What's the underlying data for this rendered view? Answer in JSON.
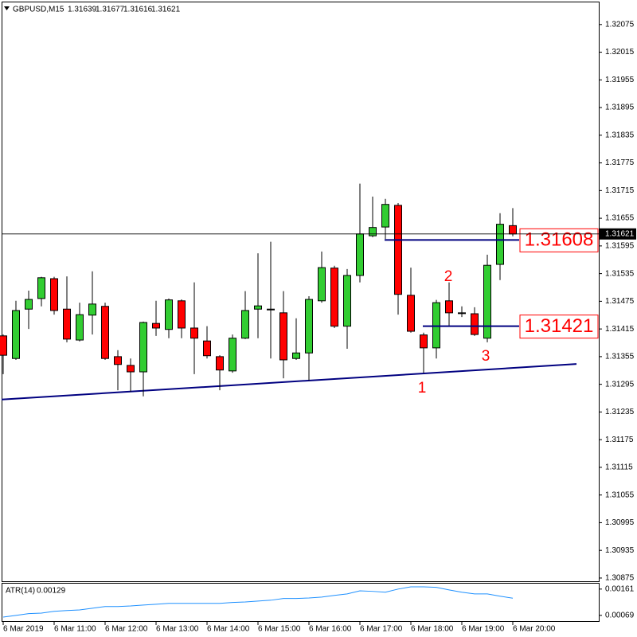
{
  "chart_data": [
    {
      "type": "candlestick",
      "title": "GBPUSD,M15",
      "categories": [
        "6 Mar 2019",
        null,
        null,
        null,
        "6 Mar 11:00",
        null,
        null,
        null,
        "6 Mar 12:00",
        null,
        null,
        null,
        "6 Mar 13:00",
        null,
        null,
        null,
        "6 Mar 14:00",
        null,
        null,
        null,
        "6 Mar 15:00",
        null,
        null,
        null,
        "6 Mar 16:00",
        null,
        null,
        null,
        "6 Mar 17:00",
        null,
        null,
        null,
        "6 Mar 18:00",
        null,
        null,
        null,
        "6 Mar 19:00",
        null,
        null,
        null,
        "6 Mar 20:00"
      ],
      "open": [
        1.314,
        1.31351,
        1.31458,
        1.31481,
        1.31524,
        1.31458,
        1.31391,
        1.31445,
        1.31464,
        1.31355,
        1.31336,
        1.31322,
        1.31427,
        1.31414,
        1.31476,
        1.31417,
        1.31389,
        1.31355,
        1.31324,
        1.31395,
        1.31458,
        1.31458,
        1.3145,
        1.31351,
        1.31363,
        1.31476,
        1.31547,
        1.31421,
        1.31531,
        1.31617,
        1.31636,
        1.31683,
        1.31488,
        1.31402,
        1.31374,
        1.31476,
        1.3145,
        1.31448,
        1.31395,
        1.31555,
        1.31639
      ],
      "high": [
        1.31403,
        1.31476,
        1.31498,
        1.31528,
        1.31528,
        1.31529,
        1.31472,
        1.3154,
        1.31472,
        1.31369,
        1.31351,
        1.31431,
        1.31476,
        1.31481,
        1.31479,
        1.31516,
        1.31421,
        1.31358,
        1.31403,
        1.31497,
        1.31579,
        1.31604,
        1.31497,
        1.31438,
        1.31486,
        1.31583,
        1.31552,
        1.31545,
        1.3173,
        1.31702,
        1.31697,
        1.31688,
        1.31548,
        1.31407,
        1.31478,
        1.31516,
        1.31464,
        1.31462,
        1.31576,
        1.31666,
        1.31677
      ],
      "low": [
        1.31317,
        1.31348,
        1.31415,
        1.31464,
        1.31446,
        1.31386,
        1.31388,
        1.31403,
        1.31348,
        1.31282,
        1.31279,
        1.31269,
        1.314,
        1.31395,
        1.31395,
        1.31317,
        1.31351,
        1.31282,
        1.3132,
        1.31393,
        1.31395,
        1.31351,
        1.31308,
        1.31348,
        1.31303,
        1.31472,
        1.31417,
        1.31372,
        1.31516,
        1.31614,
        1.3161,
        1.31446,
        1.31407,
        1.3132,
        1.31351,
        1.31421,
        1.31441,
        1.314,
        1.31386,
        1.31521,
        1.31616
      ],
      "close": [
        1.31358,
        1.31455,
        1.31479,
        1.31526,
        1.31455,
        1.31393,
        1.31446,
        1.31469,
        1.31351,
        1.31338,
        1.31322,
        1.31429,
        1.31417,
        1.31478,
        1.31417,
        1.31395,
        1.31357,
        1.31326,
        1.31395,
        1.31455,
        1.31465,
        1.31458,
        1.31348,
        1.31363,
        1.31479,
        1.31548,
        1.31421,
        1.31531,
        1.31621,
        1.31635,
        1.31685,
        1.3149,
        1.3141,
        1.31374,
        1.31472,
        1.3145,
        1.3145,
        1.31403,
        1.31553,
        1.31642,
        1.31621
      ],
      "up_color": "#32cd32",
      "down_color": "#ff0000",
      "ylim": [
        1.30868,
        1.32123
      ],
      "yticks": [
        1.32075,
        1.32015,
        1.31955,
        1.31895,
        1.31835,
        1.31775,
        1.31715,
        1.31655,
        1.31595,
        1.31535,
        1.31475,
        1.31415,
        1.31355,
        1.31295,
        1.31235,
        1.31175,
        1.31115,
        1.31055,
        1.30995,
        1.30935,
        1.30875
      ],
      "levels": [
        1.31608,
        1.31421
      ],
      "level_color": "#000080",
      "trendline": [
        1.31262,
        1.31339
      ],
      "trendline_color": "#000080",
      "annotations": [
        "1",
        "2",
        "3"
      ]
    },
    {
      "type": "line",
      "title": "ATR(14)",
      "color": "#1e90ff",
      "values": [
        0.00063,
        0.00069,
        0.00075,
        0.00077,
        0.00083,
        0.00086,
        0.00088,
        0.00094,
        0.001,
        0.001,
        0.00102,
        0.00105,
        0.00108,
        0.00111,
        0.00111,
        0.00111,
        0.00111,
        0.00111,
        0.00114,
        0.00116,
        0.00119,
        0.00122,
        0.00128,
        0.00128,
        0.0013,
        0.00133,
        0.00139,
        0.00144,
        0.00155,
        0.00153,
        0.0015,
        0.00161,
        0.00169,
        0.00169,
        0.00167,
        0.00158,
        0.0015,
        0.00144,
        0.00144,
        0.00136,
        0.00129
      ],
      "ylim": [
        0.00049,
        0.0018
      ],
      "yticks": [
        0.00161,
        0.00069
      ]
    }
  ]
}
